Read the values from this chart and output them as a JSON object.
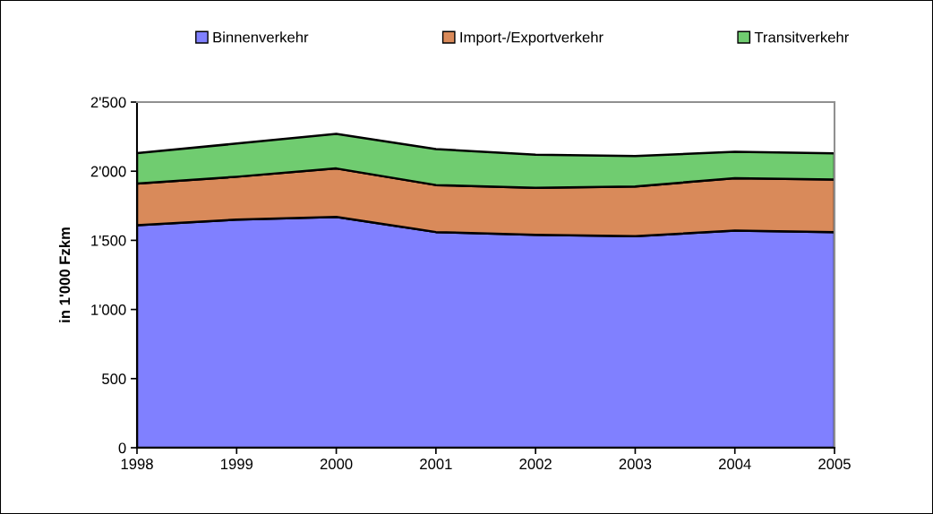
{
  "chart_data": {
    "type": "area",
    "stacked": true,
    "ylabel": "in 1'000 Fzkm",
    "x": [
      1998,
      1999,
      2000,
      2001,
      2002,
      2003,
      2004,
      2005
    ],
    "series": [
      {
        "name": "Binnenverkehr",
        "color": "#8080ff",
        "values": [
          1610,
          1650,
          1670,
          1560,
          1540,
          1530,
          1570,
          1560
        ]
      },
      {
        "name": "Import-/Exportverkehr",
        "color": "#d98a5a",
        "values": [
          300,
          310,
          350,
          340,
          340,
          360,
          380,
          380
        ]
      },
      {
        "name": "Transitverkehr",
        "color": "#70cc70",
        "values": [
          220,
          240,
          250,
          260,
          240,
          220,
          190,
          190
        ]
      }
    ],
    "xlim": [
      1998,
      2005
    ],
    "xticks": [
      1998,
      1999,
      2000,
      2001,
      2002,
      2003,
      2004,
      2005
    ],
    "ylim": [
      0,
      2500
    ],
    "yticks": [
      0,
      500,
      {
        "value": 1000,
        "label": "1'000"
      },
      {
        "value": 1500,
        "label": "1'500"
      },
      {
        "value": 2000,
        "label": "2'000"
      },
      {
        "value": 2500,
        "label": "2'500"
      }
    ],
    "grid": false,
    "legend": "top"
  }
}
